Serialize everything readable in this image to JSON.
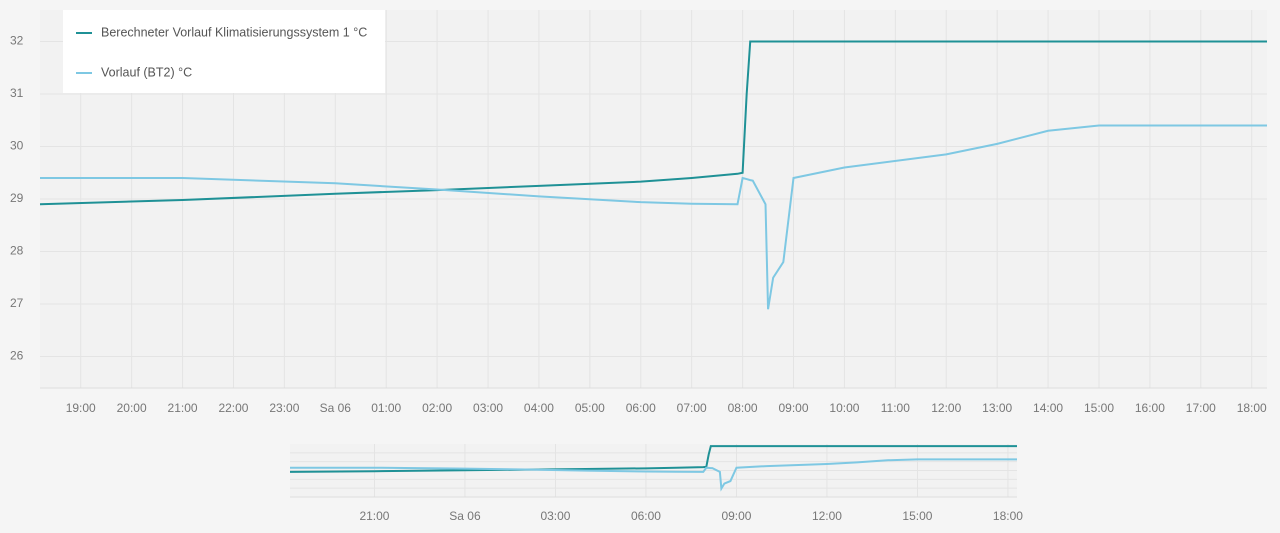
{
  "chart_data": {
    "type": "line",
    "x": [
      -5.8,
      -3,
      0,
      2,
      4,
      6,
      7,
      7.9,
      8,
      8.08,
      8.15,
      8.2,
      8.45,
      8.5,
      8.6,
      8.8,
      9,
      10,
      12,
      13,
      14,
      15,
      18.3
    ],
    "series": [
      {
        "name": "Berechneter Vorlauf Klimatisierungssystem 1 °C",
        "color": "#1f9196",
        "values": [
          28.9,
          28.98,
          29.1,
          29.17,
          29.25,
          29.33,
          29.4,
          29.48,
          29.5,
          31,
          32,
          32,
          32,
          32,
          32,
          32,
          32,
          32,
          32,
          32,
          32,
          32,
          32
        ]
      },
      {
        "name": "Vorlauf (BT2) °C",
        "color": "#7ec8e3",
        "values": [
          29.4,
          29.4,
          29.3,
          29.18,
          29.05,
          28.94,
          28.91,
          28.9,
          29.4,
          29.38,
          29.36,
          29.35,
          28.9,
          26.9,
          27.5,
          27.8,
          29.4,
          29.6,
          29.85,
          30.05,
          30.3,
          30.4,
          30.4
        ]
      }
    ],
    "xlim": [
      -5.8,
      18.3
    ],
    "xticks": [
      {
        "value": -5,
        "label": "19:00"
      },
      {
        "value": -4,
        "label": "20:00"
      },
      {
        "value": -3,
        "label": "21:00"
      },
      {
        "value": -2,
        "label": "22:00"
      },
      {
        "value": -1,
        "label": "23:00"
      },
      {
        "value": 0,
        "label": "Sa 06"
      },
      {
        "value": 1,
        "label": "01:00"
      },
      {
        "value": 2,
        "label": "02:00"
      },
      {
        "value": 3,
        "label": "03:00"
      },
      {
        "value": 4,
        "label": "04:00"
      },
      {
        "value": 5,
        "label": "05:00"
      },
      {
        "value": 6,
        "label": "06:00"
      },
      {
        "value": 7,
        "label": "07:00"
      },
      {
        "value": 8,
        "label": "08:00"
      },
      {
        "value": 9,
        "label": "09:00"
      },
      {
        "value": 10,
        "label": "10:00"
      },
      {
        "value": 11,
        "label": "11:00"
      },
      {
        "value": 12,
        "label": "12:00"
      },
      {
        "value": 13,
        "label": "13:00"
      },
      {
        "value": 14,
        "label": "14:00"
      },
      {
        "value": 15,
        "label": "15:00"
      },
      {
        "value": 16,
        "label": "16:00"
      },
      {
        "value": 17,
        "label": "17:00"
      },
      {
        "value": 18,
        "label": "18:00"
      }
    ],
    "ylim": [
      25.4,
      32.6
    ],
    "yticks": [
      26,
      27,
      28,
      29,
      30,
      31,
      32
    ],
    "grid": true,
    "legend": "upper left",
    "navigator": {
      "xticks": [
        {
          "value": -3,
          "label": "21:00"
        },
        {
          "value": 0,
          "label": "Sa 06"
        },
        {
          "value": 3,
          "label": "03:00"
        },
        {
          "value": 6,
          "label": "06:00"
        },
        {
          "value": 9,
          "label": "09:00"
        },
        {
          "value": 12,
          "label": "12:00"
        },
        {
          "value": 15,
          "label": "15:00"
        },
        {
          "value": 18,
          "label": "18:00"
        }
      ]
    }
  }
}
